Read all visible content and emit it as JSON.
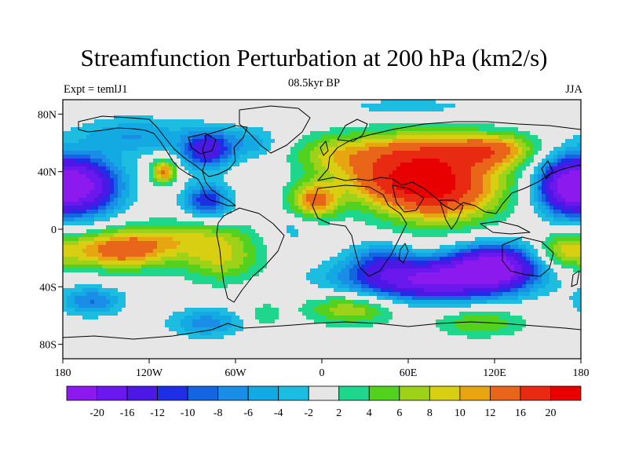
{
  "title": "Streamfunction Perturbation at 200 hPa (km2/s)",
  "subtitle_left": "Expt = temlJ1",
  "subtitle_center": "08.5kyr BP",
  "subtitle_right": "JJA",
  "chart_data": {
    "type": "heatmap",
    "projection": "cylindrical-equidistant",
    "x_range": [
      -180,
      180
    ],
    "y_range": [
      -90,
      90
    ],
    "lat_ticks": [
      {
        "value": 80,
        "label": "80N"
      },
      {
        "value": 40,
        "label": "40N"
      },
      {
        "value": 0,
        "label": "0"
      },
      {
        "value": -40,
        "label": "40S"
      },
      {
        "value": -80,
        "label": "80S"
      }
    ],
    "lon_ticks": [
      {
        "value": -180,
        "label": "180"
      },
      {
        "value": -120,
        "label": "120W"
      },
      {
        "value": -60,
        "label": "60W"
      },
      {
        "value": 0,
        "label": "0"
      },
      {
        "value": 60,
        "label": "60E"
      },
      {
        "value": 120,
        "label": "120E"
      },
      {
        "value": 180,
        "label": "180"
      }
    ],
    "colorbar": {
      "levels": [
        -20,
        -16,
        -12,
        -10,
        -8,
        -6,
        -4,
        -2,
        2,
        4,
        6,
        8,
        10,
        12,
        16,
        20
      ],
      "labels": [
        "-20",
        "-16",
        "-12",
        "-10",
        "-8",
        "-6",
        "-4",
        "-2",
        "2",
        "4",
        "6",
        "8",
        "10",
        "12",
        "16",
        "20"
      ],
      "colors": [
        "#8c1aef",
        "#6a18ee",
        "#4b18e6",
        "#1e2ee6",
        "#1466e0",
        "#1a8ee6",
        "#13a9e3",
        "#1cbde0",
        "#e6e6e6",
        "#1ed68c",
        "#52d21e",
        "#9ed21a",
        "#d8cf12",
        "#e8a512",
        "#e8651a",
        "#e82a12",
        "#e80000"
      ]
    },
    "centers": [
      {
        "lon": 80,
        "lat": 30,
        "value": 21,
        "sx": 30,
        "sy": 17
      },
      {
        "lon": 40,
        "lat": 35,
        "value": 8,
        "sx": 22,
        "sy": 12
      },
      {
        "lon": -5,
        "lat": 20,
        "value": 13,
        "sx": 12,
        "sy": 9
      },
      {
        "lon": 60,
        "lat": 55,
        "value": 9,
        "sx": 40,
        "sy": 10
      },
      {
        "lon": 120,
        "lat": 55,
        "value": 10,
        "sx": 20,
        "sy": 8
      },
      {
        "lon": 5,
        "lat": 50,
        "value": 5,
        "sx": 18,
        "sy": 10
      },
      {
        "lon": -140,
        "lat": -15,
        "value": 14,
        "sx": 25,
        "sy": 9
      },
      {
        "lon": -70,
        "lat": -20,
        "value": 8,
        "sx": 20,
        "sy": 12
      },
      {
        "lon": -100,
        "lat": -5,
        "value": 6,
        "sx": 30,
        "sy": 8
      },
      {
        "lon": 170,
        "lat": -15,
        "value": 8,
        "sx": 14,
        "sy": 9
      },
      {
        "lon": -110,
        "lat": 40,
        "value": 13,
        "sx": 6,
        "sy": 6
      },
      {
        "lon": 20,
        "lat": -55,
        "value": 8,
        "sx": 22,
        "sy": 8
      },
      {
        "lon": 110,
        "lat": -65,
        "value": 6,
        "sx": 22,
        "sy": 7
      },
      {
        "lon": -40,
        "lat": -60,
        "value": 4,
        "sx": 8,
        "sy": 6
      },
      {
        "lon": 75,
        "lat": -35,
        "value": -21,
        "sx": 40,
        "sy": 10
      },
      {
        "lon": 120,
        "lat": -25,
        "value": -20,
        "sx": 20,
        "sy": 10
      },
      {
        "lon": 40,
        "lat": -20,
        "value": -6,
        "sx": 15,
        "sy": 8
      },
      {
        "lon": -165,
        "lat": 30,
        "value": -19,
        "sx": 18,
        "sy": 14
      },
      {
        "lon": 170,
        "lat": 30,
        "value": -18,
        "sx": 15,
        "sy": 14
      },
      {
        "lon": -80,
        "lat": 55,
        "value": -14,
        "sx": 12,
        "sy": 9
      },
      {
        "lon": -80,
        "lat": 20,
        "value": -12,
        "sx": 11,
        "sy": 8
      },
      {
        "lon": -130,
        "lat": 65,
        "value": -6,
        "sx": 28,
        "sy": 9
      },
      {
        "lon": -50,
        "lat": 60,
        "value": -5,
        "sx": 15,
        "sy": 8
      },
      {
        "lon": -160,
        "lat": -50,
        "value": -8,
        "sx": 15,
        "sy": 7
      },
      {
        "lon": -80,
        "lat": -65,
        "value": -7,
        "sx": 18,
        "sy": 7
      },
      {
        "lon": -20,
        "lat": 0,
        "value": -3,
        "sx": 12,
        "sy": 8
      },
      {
        "lon": 60,
        "lat": 85,
        "value": -3,
        "sx": 40,
        "sy": 5
      }
    ]
  }
}
